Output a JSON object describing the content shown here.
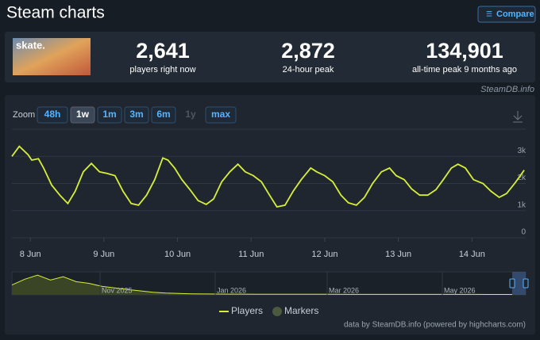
{
  "header": {
    "title": "Steam charts",
    "compare": "Compare"
  },
  "stats": [
    {
      "value": "2,641",
      "label": "players right now"
    },
    {
      "value": "2,872",
      "label": "24-hour peak"
    },
    {
      "value": "134,901",
      "label": "all-time peak 9 months ago"
    }
  ],
  "source": "SteamDB.info",
  "zoom": {
    "label": "Zoom",
    "options": [
      "48h",
      "1w",
      "1m",
      "3m",
      "6m",
      "1y",
      "max"
    ],
    "selected": "1w",
    "disabled": "1y"
  },
  "chart_data": {
    "type": "line",
    "x": [
      7.75,
      7.85,
      7.97,
      8.02,
      8.11,
      8.18,
      8.29,
      8.4,
      8.51,
      8.61,
      8.72,
      8.83,
      8.94,
      9.04,
      9.15,
      9.26,
      9.37,
      9.47,
      9.58,
      9.69,
      9.8,
      9.87,
      9.96,
      10.06,
      10.17,
      10.28,
      10.39,
      10.49,
      10.6,
      10.71,
      10.82,
      10.92,
      11.03,
      11.14,
      11.25,
      11.35,
      11.46,
      11.57,
      11.68,
      11.81,
      11.89,
      12.0,
      12.11,
      12.22,
      12.32,
      12.43,
      12.54,
      12.65,
      12.77,
      12.88,
      12.97,
      13.08,
      13.18,
      13.29,
      13.4,
      13.51,
      13.61,
      13.72,
      13.81,
      13.91,
      14.02,
      14.15,
      14.26,
      14.37,
      14.47,
      14.58,
      14.71
    ],
    "series": [
      {
        "name": "Players",
        "color": "#d7ef38",
        "values": [
          3000,
          3370,
          3060,
          2860,
          2910,
          2570,
          1940,
          1570,
          1260,
          1710,
          2430,
          2740,
          2430,
          2370,
          2290,
          1710,
          1260,
          1200,
          1570,
          2140,
          2940,
          2860,
          2570,
          2140,
          1770,
          1370,
          1230,
          1430,
          2060,
          2430,
          2710,
          2430,
          2290,
          2060,
          1570,
          1140,
          1200,
          1710,
          2140,
          2570,
          2430,
          2290,
          2060,
          1570,
          1290,
          1200,
          1490,
          2000,
          2430,
          2570,
          2290,
          2140,
          1800,
          1570,
          1570,
          1770,
          2140,
          2570,
          2710,
          2570,
          2140,
          2000,
          1710,
          1490,
          1630,
          2000,
          2490
        ]
      }
    ],
    "markers_legend": {
      "name": "Markers",
      "color": "#4b5a3c"
    },
    "xlim": [
      7.75,
      14.73
    ],
    "xticks": [
      {
        "value": 8,
        "label": "8 Jun"
      },
      {
        "value": 9,
        "label": "9 Jun"
      },
      {
        "value": 10,
        "label": "10 Jun"
      },
      {
        "value": 11,
        "label": "11 Jun"
      },
      {
        "value": 12,
        "label": "12 Jun"
      },
      {
        "value": 13,
        "label": "13 Jun"
      },
      {
        "value": 14,
        "label": "14 Jun"
      }
    ],
    "ylim": [
      0,
      4000
    ],
    "yticks": [
      0,
      {
        "value": 1000,
        "label": "1k"
      },
      {
        "value": 2000,
        "label": "2k"
      },
      {
        "value": 3000,
        "label": "3k"
      }
    ],
    "grid": true,
    "navigator": {
      "ylim": [
        0,
        140000
      ],
      "labels": [
        "Nov 2025",
        "Jan 2026",
        "Mar 2026",
        "May 2026"
      ],
      "values": [
        60000,
        95000,
        120000,
        90000,
        110000,
        80000,
        70000,
        52000,
        42000,
        33000,
        24000,
        16000,
        11000,
        8000,
        6500,
        5500,
        5000,
        4500,
        4200,
        4000,
        3800,
        3600,
        3500,
        3400,
        3300,
        3200,
        3100,
        3000,
        3000,
        2900,
        2900,
        2800,
        2800,
        2800,
        2700,
        2700,
        2700,
        2600,
        2600,
        2600
      ]
    },
    "credits": "data by SteamDB.info (powered by highcharts.com)"
  }
}
